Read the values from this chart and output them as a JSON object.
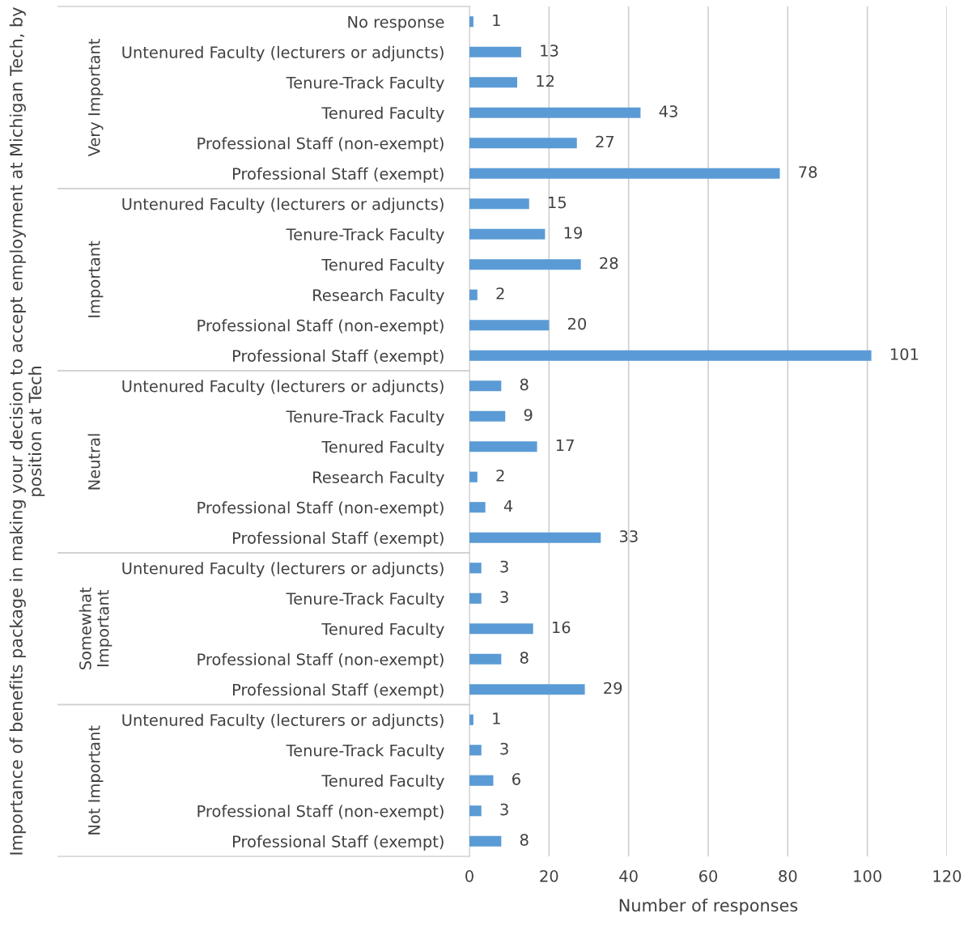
{
  "chart_data": {
    "type": "bar",
    "orientation": "horizontal",
    "xlabel": "Number of responses",
    "ylabel": "Importance of benefits package in making your decision to accept employment at Michigan Tech, by position at Tech",
    "categories": [
      "No response",
      "Untenured Faculty (lecturers or adjuncts)",
      "Tenure-Track Faculty",
      "Tenured Faculty",
      "Professional Staff (non-exempt)",
      "Professional Staff (exempt)",
      "Untenured Faculty (lecturers or adjuncts)",
      "Tenure-Track Faculty",
      "Tenured Faculty",
      "Research Faculty",
      "Professional Staff (non-exempt)",
      "Professional Staff (exempt)",
      "Untenured Faculty (lecturers or adjuncts)",
      "Tenure-Track Faculty",
      "Tenured Faculty",
      "Research Faculty",
      "Professional Staff (non-exempt)",
      "Professional Staff (exempt)",
      "Untenured Faculty (lecturers or adjuncts)",
      "Tenure-Track Faculty",
      "Tenured Faculty",
      "Professional Staff (non-exempt)",
      "Professional Staff (exempt)",
      "Untenured Faculty (lecturers or adjuncts)",
      "Tenure-Track Faculty",
      "Tenured Faculty",
      "Professional Staff (non-exempt)",
      "Professional Staff (exempt)"
    ],
    "series": [
      {
        "color": "#5b9bd5",
        "values": [
          1,
          13,
          12,
          43,
          27,
          78,
          null,
          null,
          null,
          null,
          null,
          null,
          null,
          null,
          null,
          null,
          null,
          null,
          null,
          null,
          null,
          null,
          null,
          null,
          null,
          null,
          null,
          null
        ]
      },
      {
        "color": "#5b9bd5",
        "values": [
          null,
          null,
          null,
          null,
          null,
          null,
          15,
          19,
          28,
          2,
          20,
          101,
          null,
          null,
          null,
          null,
          null,
          null,
          null,
          null,
          null,
          null,
          null,
          null,
          null,
          null,
          null,
          null
        ]
      },
      {
        "color": "#5b9bd5",
        "values": [
          null,
          null,
          null,
          null,
          null,
          null,
          null,
          null,
          null,
          null,
          null,
          null,
          8,
          9,
          17,
          2,
          4,
          33,
          null,
          null,
          null,
          null,
          null,
          null,
          null,
          null,
          null,
          null
        ]
      },
      {
        "color": "#5b9bd5",
        "values": [
          null,
          null,
          null,
          null,
          null,
          null,
          null,
          null,
          null,
          null,
          null,
          null,
          null,
          null,
          null,
          null,
          null,
          null,
          3,
          3,
          16,
          8,
          29,
          null,
          null,
          null,
          null,
          null
        ]
      },
      {
        "color": "#5b9bd5",
        "values": [
          null,
          null,
          null,
          null,
          null,
          null,
          null,
          null,
          null,
          null,
          null,
          null,
          null,
          null,
          null,
          null,
          null,
          null,
          null,
          null,
          null,
          null,
          null,
          1,
          3,
          6,
          3,
          8
        ]
      }
    ],
    "xlim": [
      0,
      120
    ],
    "xticks": [
      0,
      20,
      40,
      60,
      80,
      100,
      120
    ],
    "annotations": [
      "Very Important",
      "Important",
      "Neutral",
      "Somewhat\nImportant",
      "Not Important"
    ],
    "grid": "x",
    "data_labels": true,
    "legend": false
  }
}
